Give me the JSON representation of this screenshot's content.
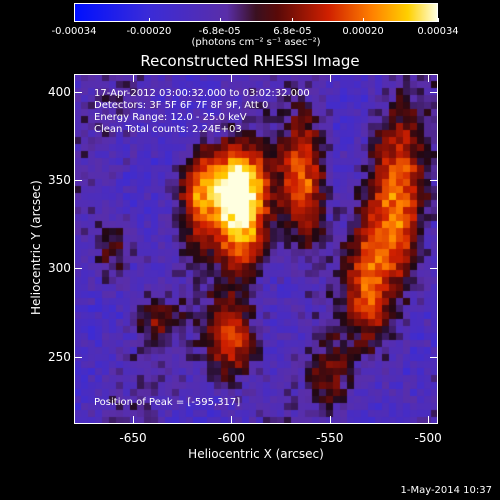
{
  "colorbar": {
    "tick_labels": [
      "-0.00034",
      "-0.00020",
      "-6.8e-05",
      "6.8e-05",
      "0.00020",
      "0.00034"
    ],
    "tick_values": [
      -0.00034,
      -0.0002,
      -6.8e-05,
      6.8e-05,
      0.0002,
      0.00034
    ],
    "units": "(photons cm⁻² s⁻¹ asec⁻²)"
  },
  "title": "Reconstructed RHESSI Image",
  "annotations": {
    "time_range": "17-Apr-2012 03:00:32.000 to 03:02:32.000",
    "detectors": "Detectors: 3F 5F 6F 7F 8F 9F, Att 0",
    "energy": "Energy Range: 12.0 - 25.0 keV",
    "clean": "Clean     Total counts: 2.24E+03",
    "peak": "Position of Peak = [-595,317]"
  },
  "x_axis": {
    "label": "Heliocentric X (arcsec)",
    "ticks": [
      "-650",
      "-600",
      "-550",
      "-500"
    ],
    "range": [
      -680,
      -495
    ]
  },
  "y_axis": {
    "label": "Heliocentric Y (arcsec)",
    "ticks": [
      "250",
      "300",
      "350",
      "400"
    ],
    "range": [
      212,
      410
    ]
  },
  "footer": "1-May-2014 10:37"
}
